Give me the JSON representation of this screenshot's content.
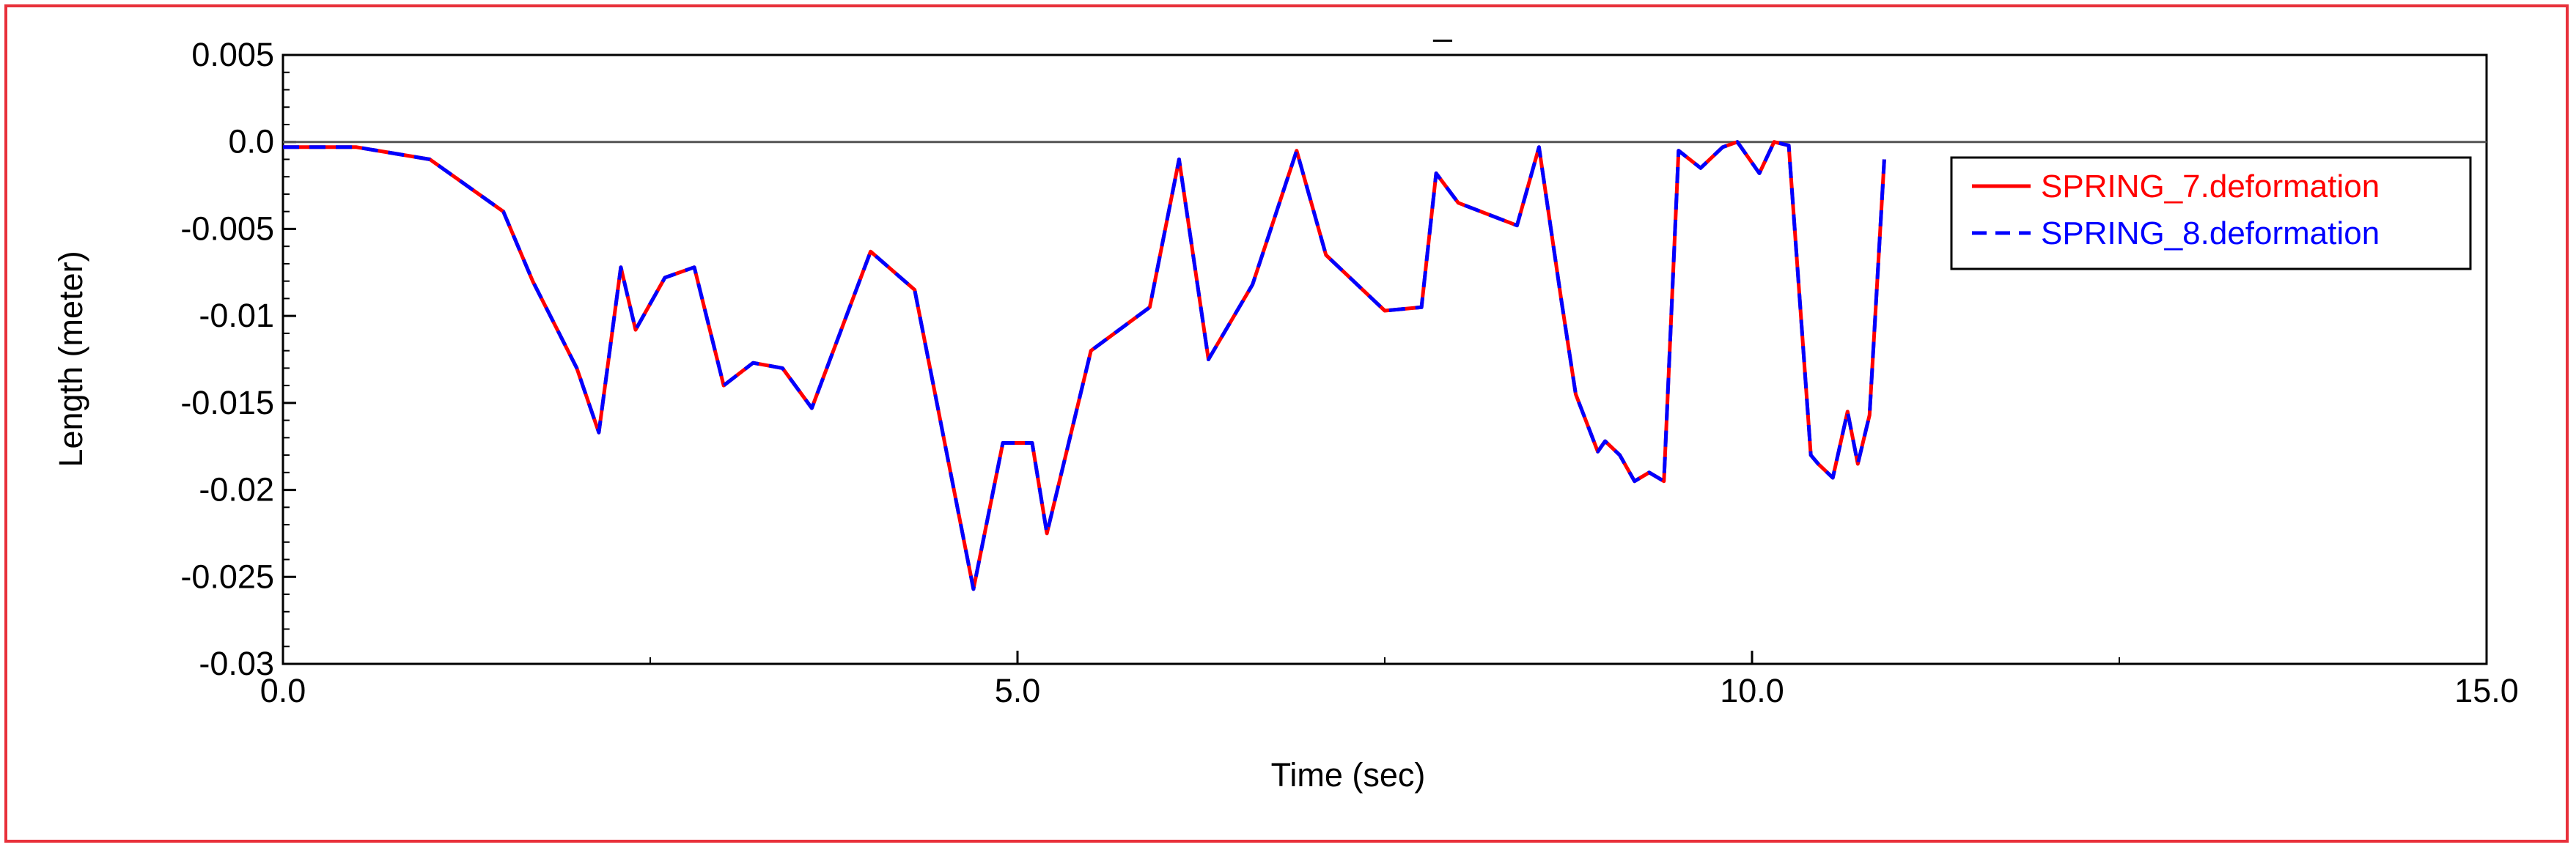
{
  "chart_data": {
    "type": "line",
    "title": "_",
    "xlabel": "Time (sec)",
    "ylabel": "Length (meter)",
    "xlim": [
      0,
      15
    ],
    "ylim": [
      -0.03,
      0.005
    ],
    "x_ticks": [
      0,
      5,
      10,
      15
    ],
    "x_tick_labels": [
      "0.0",
      "5.0",
      "10.0",
      "15.0"
    ],
    "y_ticks": [
      0.005,
      0,
      -0.005,
      -0.01,
      -0.015,
      -0.02,
      -0.025,
      -0.03
    ],
    "y_tick_labels": [
      "0.005",
      "0.0",
      "-0.005",
      "-0.01",
      "-0.015",
      "-0.02",
      "-0.025",
      "-0.03"
    ],
    "reference_line_y": 0,
    "grid": false,
    "legend_position": "top-right",
    "series": [
      {
        "name": "SPRING_7.deformation",
        "color": "#ff0000",
        "style": "solid",
        "x": [
          0,
          0.5,
          1.0,
          1.5,
          1.7,
          2.0,
          2.15,
          2.3,
          2.4,
          2.6,
          2.8,
          3.0,
          3.2,
          3.4,
          3.6,
          4.0,
          4.3,
          4.7,
          4.9,
          5.1,
          5.2,
          5.5,
          5.9,
          6.1,
          6.3,
          6.6,
          6.9,
          7.1,
          7.5,
          7.75,
          7.85,
          8.0,
          8.4,
          8.55,
          8.7,
          8.8,
          8.95,
          9.0,
          9.1,
          9.2,
          9.3,
          9.4,
          9.5,
          9.65,
          9.8,
          9.9,
          10.05,
          10.15,
          10.25,
          10.4,
          10.45,
          10.55,
          10.65,
          10.72,
          10.8,
          10.9
        ],
        "values": [
          -0.0003,
          -0.0003,
          -0.001,
          -0.004,
          -0.008,
          -0.013,
          -0.0167,
          -0.0072,
          -0.0108,
          -0.0078,
          -0.0072,
          -0.014,
          -0.0127,
          -0.013,
          -0.0153,
          -0.0063,
          -0.0085,
          -0.0257,
          -0.0173,
          -0.0173,
          -0.0225,
          -0.012,
          -0.0095,
          -0.001,
          -0.0125,
          -0.0082,
          -0.0005,
          -0.0065,
          -0.0097,
          -0.0095,
          -0.0018,
          -0.0035,
          -0.0048,
          -0.0003,
          -0.009,
          -0.0145,
          -0.0178,
          -0.0172,
          -0.018,
          -0.0195,
          -0.019,
          -0.0195,
          -0.0005,
          -0.0015,
          -0.0003,
          0,
          -0.0018,
          0,
          -0.0002,
          -0.018,
          -0.0185,
          -0.0193,
          -0.0155,
          -0.0185,
          -0.0157,
          -0.001
        ]
      },
      {
        "name": "SPRING_8.deformation",
        "color": "#0000ff",
        "style": "dashed",
        "x": [
          0,
          0.5,
          1.0,
          1.5,
          1.7,
          2.0,
          2.15,
          2.3,
          2.4,
          2.6,
          2.8,
          3.0,
          3.2,
          3.4,
          3.6,
          4.0,
          4.3,
          4.7,
          4.9,
          5.1,
          5.2,
          5.5,
          5.9,
          6.1,
          6.3,
          6.6,
          6.9,
          7.1,
          7.5,
          7.75,
          7.85,
          8.0,
          8.4,
          8.55,
          8.7,
          8.8,
          8.95,
          9.0,
          9.1,
          9.2,
          9.3,
          9.4,
          9.5,
          9.65,
          9.8,
          9.9,
          10.05,
          10.15,
          10.25,
          10.4,
          10.45,
          10.55,
          10.65,
          10.72,
          10.8,
          10.9
        ],
        "values": [
          -0.0003,
          -0.0003,
          -0.001,
          -0.004,
          -0.008,
          -0.013,
          -0.0167,
          -0.0072,
          -0.0108,
          -0.0078,
          -0.0072,
          -0.014,
          -0.0127,
          -0.013,
          -0.0153,
          -0.0063,
          -0.0085,
          -0.0257,
          -0.0173,
          -0.0173,
          -0.0225,
          -0.012,
          -0.0095,
          -0.001,
          -0.0125,
          -0.0082,
          -0.0005,
          -0.0065,
          -0.0097,
          -0.0095,
          -0.0018,
          -0.0035,
          -0.0048,
          -0.0003,
          -0.009,
          -0.0145,
          -0.0178,
          -0.0172,
          -0.018,
          -0.0195,
          -0.019,
          -0.0195,
          -0.0005,
          -0.0015,
          -0.0003,
          0,
          -0.0018,
          0,
          -0.0002,
          -0.018,
          -0.0185,
          -0.0193,
          -0.0155,
          -0.0185,
          -0.0157,
          -0.001
        ]
      }
    ]
  }
}
